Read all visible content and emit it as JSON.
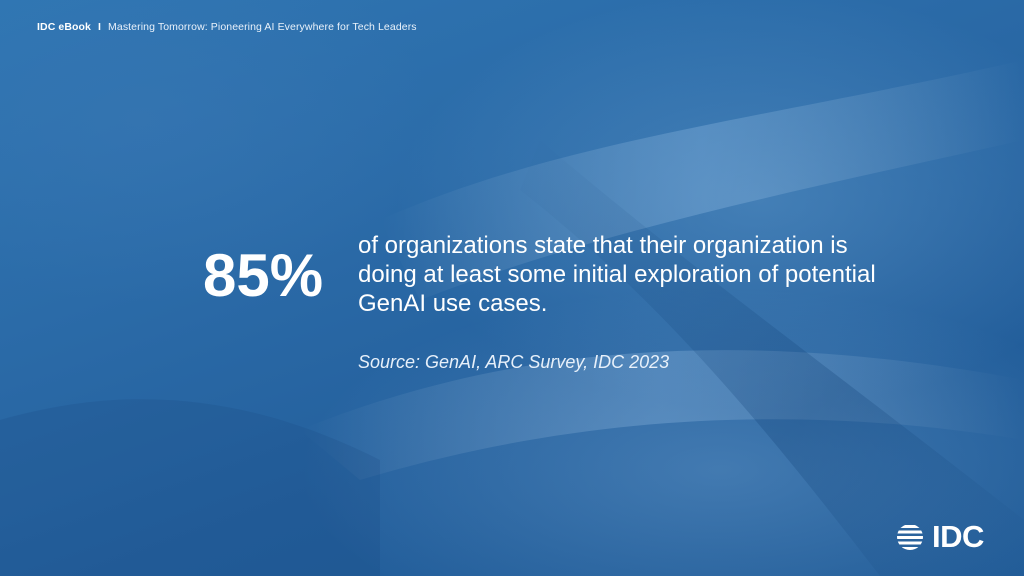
{
  "header": {
    "brand": "IDC eBook",
    "separator": "I",
    "title": "Mastering Tomorrow: Pioneering AI Everywhere for Tech Leaders"
  },
  "highlight": {
    "stat": "85%",
    "statement": "of organizations state that their organization is doing at least some initial exploration of potential GenAI use cases.",
    "source": "Source: GenAI, ARC Survey, IDC 2023"
  },
  "logo": {
    "text": "IDC",
    "icon": "idc-globe-logo-icon"
  },
  "colors": {
    "background": "#2a6aa6",
    "text": "#ffffff"
  }
}
